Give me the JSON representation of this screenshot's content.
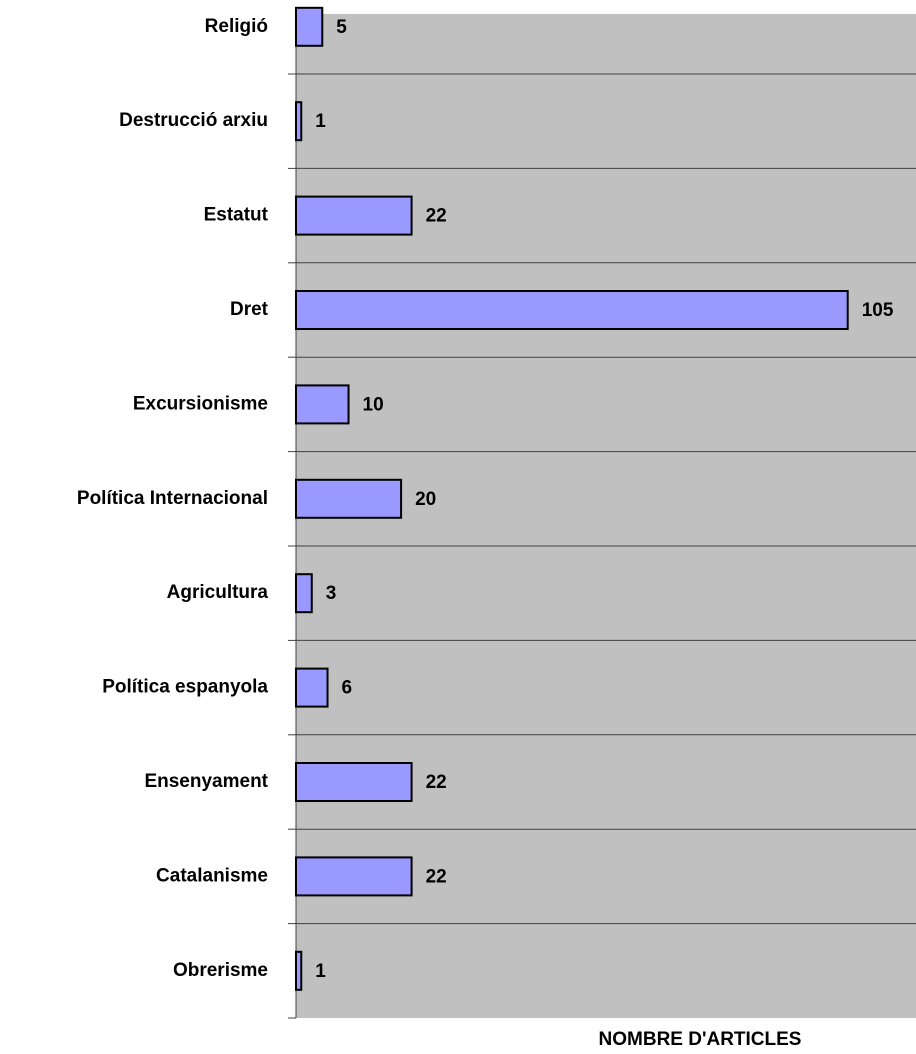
{
  "chart_data": {
    "type": "barh",
    "categories": [
      "Religió",
      "Destrucció arxiu",
      "Estatut",
      "Dret",
      "Excursionisme",
      "Política Internacional",
      "Agricultura",
      "Política espanyola",
      "Ensenyament",
      "Catalanisme",
      "Obrerisme"
    ],
    "values": [
      5,
      1,
      22,
      105,
      10,
      20,
      3,
      6,
      22,
      22,
      1
    ],
    "color": "#9999ff",
    "xlim": [
      0,
      118
    ],
    "xlabel": "NOMBRE D'ARTICLES",
    "grid": true
  }
}
